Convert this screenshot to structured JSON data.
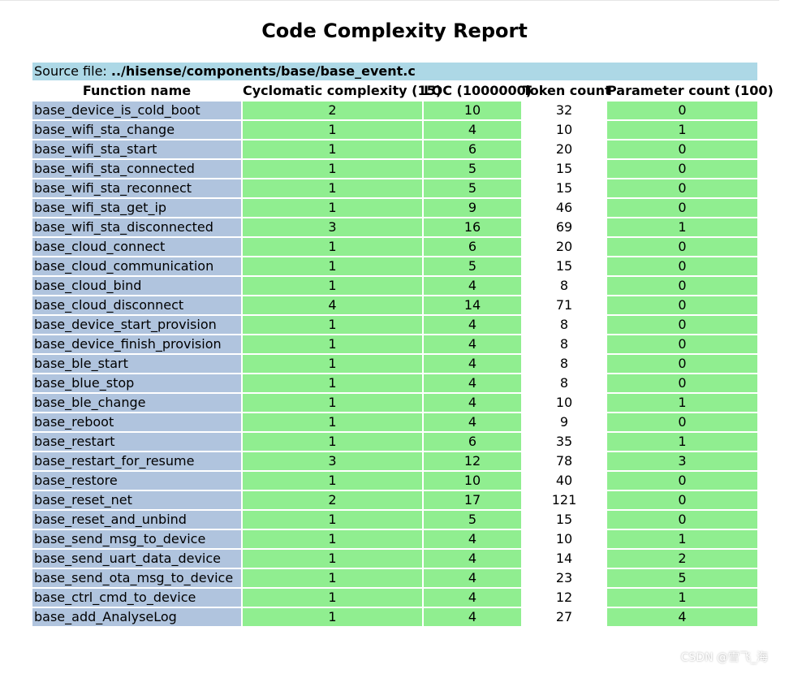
{
  "report": {
    "title": "Code Complexity Report",
    "source_label": "Source file:",
    "source_path": "../hisense/components/base/base_event.c",
    "columns": [
      "Function name",
      "Cyclomatic complexity (15)",
      "LOC (1000000)",
      "Token count",
      "Parameter count (100)"
    ],
    "rows": [
      {
        "name": "base_device_is_cold_boot",
        "ccn": "2",
        "loc": "10",
        "tokens": "32",
        "params": "0"
      },
      {
        "name": "base_wifi_sta_change",
        "ccn": "1",
        "loc": "4",
        "tokens": "10",
        "params": "1"
      },
      {
        "name": "base_wifi_sta_start",
        "ccn": "1",
        "loc": "6",
        "tokens": "20",
        "params": "0"
      },
      {
        "name": "base_wifi_sta_connected",
        "ccn": "1",
        "loc": "5",
        "tokens": "15",
        "params": "0"
      },
      {
        "name": "base_wifi_sta_reconnect",
        "ccn": "1",
        "loc": "5",
        "tokens": "15",
        "params": "0"
      },
      {
        "name": "base_wifi_sta_get_ip",
        "ccn": "1",
        "loc": "9",
        "tokens": "46",
        "params": "0"
      },
      {
        "name": "base_wifi_sta_disconnected",
        "ccn": "3",
        "loc": "16",
        "tokens": "69",
        "params": "1"
      },
      {
        "name": "base_cloud_connect",
        "ccn": "1",
        "loc": "6",
        "tokens": "20",
        "params": "0"
      },
      {
        "name": "base_cloud_communication",
        "ccn": "1",
        "loc": "5",
        "tokens": "15",
        "params": "0"
      },
      {
        "name": "base_cloud_bind",
        "ccn": "1",
        "loc": "4",
        "tokens": "8",
        "params": "0"
      },
      {
        "name": "base_cloud_disconnect",
        "ccn": "4",
        "loc": "14",
        "tokens": "71",
        "params": "0"
      },
      {
        "name": "base_device_start_provision",
        "ccn": "1",
        "loc": "4",
        "tokens": "8",
        "params": "0"
      },
      {
        "name": "base_device_finish_provision",
        "ccn": "1",
        "loc": "4",
        "tokens": "8",
        "params": "0"
      },
      {
        "name": "base_ble_start",
        "ccn": "1",
        "loc": "4",
        "tokens": "8",
        "params": "0"
      },
      {
        "name": "base_blue_stop",
        "ccn": "1",
        "loc": "4",
        "tokens": "8",
        "params": "0"
      },
      {
        "name": "base_ble_change",
        "ccn": "1",
        "loc": "4",
        "tokens": "10",
        "params": "1"
      },
      {
        "name": "base_reboot",
        "ccn": "1",
        "loc": "4",
        "tokens": "9",
        "params": "0"
      },
      {
        "name": "base_restart",
        "ccn": "1",
        "loc": "6",
        "tokens": "35",
        "params": "1"
      },
      {
        "name": "base_restart_for_resume",
        "ccn": "3",
        "loc": "12",
        "tokens": "78",
        "params": "3"
      },
      {
        "name": "base_restore",
        "ccn": "1",
        "loc": "10",
        "tokens": "40",
        "params": "0"
      },
      {
        "name": "base_reset_net",
        "ccn": "2",
        "loc": "17",
        "tokens": "121",
        "params": "0"
      },
      {
        "name": "base_reset_and_unbind",
        "ccn": "1",
        "loc": "5",
        "tokens": "15",
        "params": "0"
      },
      {
        "name": "base_send_msg_to_device",
        "ccn": "1",
        "loc": "4",
        "tokens": "10",
        "params": "1"
      },
      {
        "name": "base_send_uart_data_device",
        "ccn": "1",
        "loc": "4",
        "tokens": "14",
        "params": "2"
      },
      {
        "name": "base_send_ota_msg_to_device",
        "ccn": "1",
        "loc": "4",
        "tokens": "23",
        "params": "5"
      },
      {
        "name": "base_ctrl_cmd_to_device",
        "ccn": "1",
        "loc": "4",
        "tokens": "12",
        "params": "1"
      },
      {
        "name": "base_add_AnalyseLog",
        "ccn": "1",
        "loc": "4",
        "tokens": "27",
        "params": "4"
      }
    ]
  },
  "watermark": "CSDN @雪飞_海",
  "colors": {
    "source_bg": "#add8e6",
    "name_bg": "#b0c4de",
    "ok_bg": "#90ee90"
  }
}
